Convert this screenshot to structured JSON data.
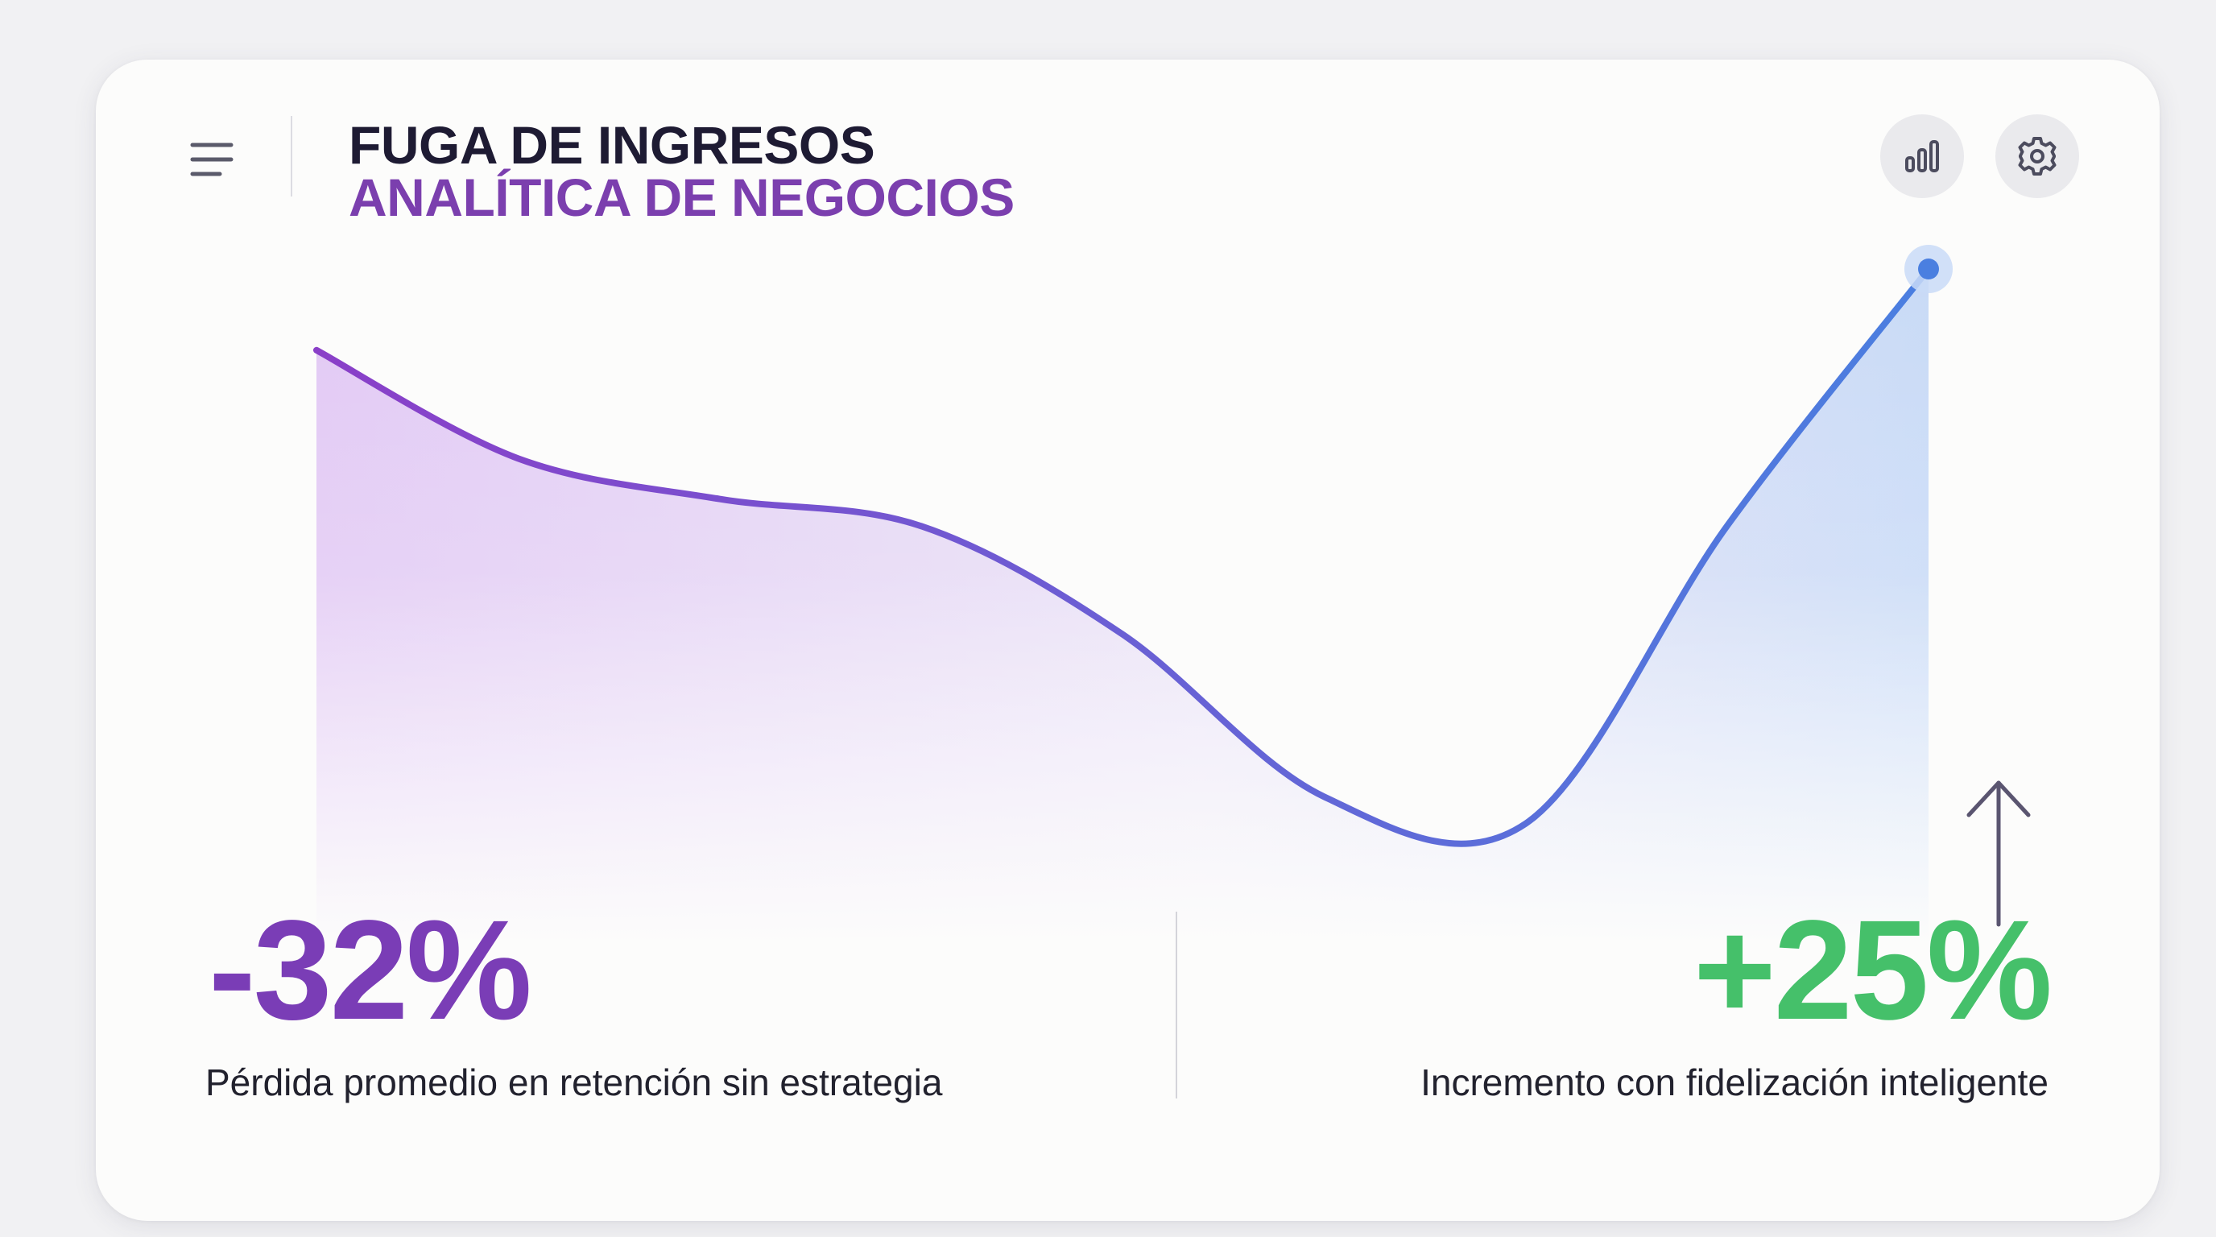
{
  "header": {
    "title": "FUGA DE INGRESOS",
    "subtitle": "ANALÍTICA DE NEGOCIOS",
    "menu_icon": "hamburger-menu-icon",
    "actions": [
      {
        "icon": "bar-chart-icon"
      },
      {
        "icon": "gear-icon"
      }
    ]
  },
  "colors": {
    "loss": "#7a3db6",
    "gain": "#45c06a",
    "line_start": "#8a3fc8",
    "line_end": "#4a7fe0",
    "area_start": "#d9b8f2",
    "area_end": "#b7cff5",
    "title": "#1e1b33",
    "subtitle": "#7b3fae"
  },
  "chart_data": {
    "type": "area",
    "x": [
      0,
      1,
      2,
      3,
      4,
      5,
      6,
      7,
      8
    ],
    "series": [
      {
        "values": [
          0.88,
          0.72,
          0.66,
          0.62,
          0.46,
          0.22,
          0.18,
          0.62,
          1.0
        ]
      }
    ],
    "ylim": [
      0,
      1
    ],
    "grid": false,
    "legend": "none",
    "end_marker": "highlighted-point",
    "trend_indicator": "arrow-up-icon"
  },
  "stats": {
    "left": {
      "value": "-32%",
      "caption": "Pérdida promedio en retención sin estrategia"
    },
    "right": {
      "value": "+25%",
      "caption": "Incremento con fidelización inteligente"
    }
  }
}
